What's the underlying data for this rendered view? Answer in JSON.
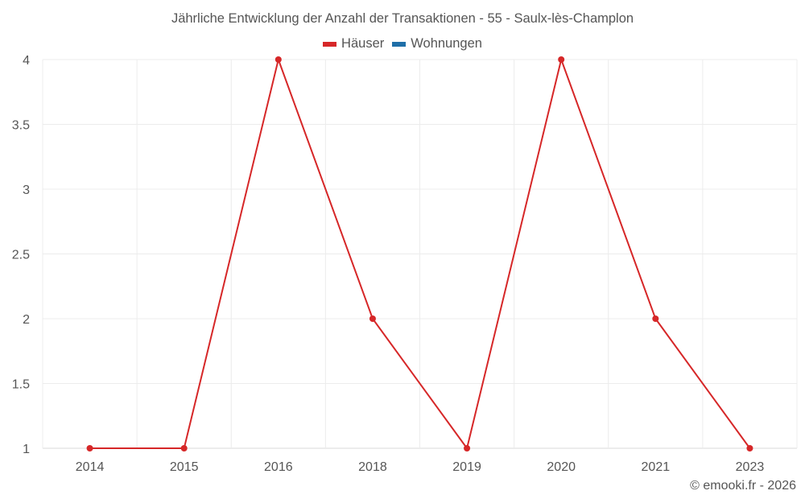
{
  "title": "Jährliche Entwicklung der Anzahl der Transaktionen - 55 - Saulx-lès-Champlon",
  "legend": [
    {
      "label": "Häuser",
      "color": "#d62728"
    },
    {
      "label": "Wohnungen",
      "color": "#1f6fa8"
    }
  ],
  "credit": "© emooki.fr - 2026",
  "chart_data": {
    "type": "line",
    "title": "Jährliche Entwicklung der Anzahl der Transaktionen - 55 - Saulx-lès-Champlon",
    "xlabel": "",
    "ylabel": "",
    "categories": [
      "2014",
      "2015",
      "2016",
      "2018",
      "2019",
      "2020",
      "2021",
      "2023"
    ],
    "series": [
      {
        "name": "Häuser",
        "color": "#d62728",
        "values": [
          1,
          1,
          4,
          2,
          1,
          4,
          2,
          1
        ]
      },
      {
        "name": "Wohnungen",
        "color": "#1f6fa8",
        "values": []
      }
    ],
    "ylim": [
      1,
      4
    ],
    "yticks": [
      "1",
      "1.5",
      "2",
      "2.5",
      "3",
      "3.5",
      "4"
    ],
    "grid": true,
    "legend_position": "top"
  }
}
